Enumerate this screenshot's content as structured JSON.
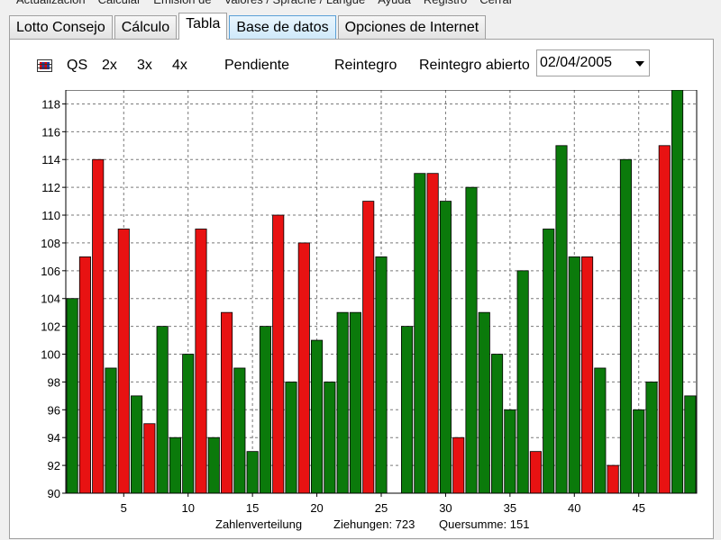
{
  "menubar": {
    "items": [
      "Actualización",
      "Calcular",
      "Emisión de",
      "Valores / Sprache / Langue",
      "Ayuda",
      "Registro",
      "Cerrar"
    ]
  },
  "tabs": [
    {
      "label": "Lotto Consejo"
    },
    {
      "label": "Cálculo"
    },
    {
      "label": "Tabla"
    },
    {
      "label": "Base de datos"
    },
    {
      "label": "Opciones de Internet"
    }
  ],
  "toolbar": {
    "qs": "QS",
    "x2": "2x",
    "x3": "3x",
    "x4": "4x",
    "pendiente": "Pendiente",
    "reintegro": "Reintegro",
    "reintegro_abierto": "Reintegro abierto",
    "date_value": "02/04/2005"
  },
  "colors": {
    "green": "#0b7a0b",
    "red": "#e81212",
    "grid": "#7a7a7a"
  },
  "chart_data": {
    "type": "bar",
    "categories": [
      1,
      2,
      3,
      4,
      5,
      6,
      7,
      8,
      9,
      10,
      11,
      12,
      13,
      14,
      15,
      16,
      17,
      18,
      19,
      20,
      21,
      22,
      23,
      24,
      25,
      26,
      27,
      28,
      29,
      30,
      31,
      32,
      33,
      34,
      35,
      36,
      37,
      38,
      39,
      40,
      41,
      42,
      43,
      44,
      45,
      46,
      47,
      48,
      49
    ],
    "values": [
      104,
      107,
      114,
      99,
      109,
      97,
      95,
      102,
      94,
      100,
      109,
      94,
      103,
      99,
      93,
      102,
      110,
      98,
      108,
      101,
      98,
      103,
      103,
      111,
      107,
      90,
      102,
      113,
      113,
      111,
      94,
      112,
      103,
      100,
      96,
      106,
      93,
      109,
      115,
      107,
      107,
      99,
      92,
      114,
      96,
      98,
      115,
      119,
      97
    ],
    "highlight": [
      2,
      3,
      5,
      7,
      11,
      13,
      17,
      19,
      24,
      29,
      31,
      37,
      41,
      43,
      47
    ],
    "ylim": [
      90,
      119
    ],
    "yticks": [
      90,
      92,
      94,
      96,
      98,
      100,
      102,
      104,
      106,
      108,
      110,
      112,
      114,
      116,
      118
    ],
    "xticks": [
      5,
      10,
      15,
      20,
      25,
      30,
      35,
      40,
      45
    ],
    "caption": {
      "label": "Zahlenverteilung",
      "draws": "Ziehungen: 723",
      "digit_sum": "Quersumme: 151"
    }
  }
}
